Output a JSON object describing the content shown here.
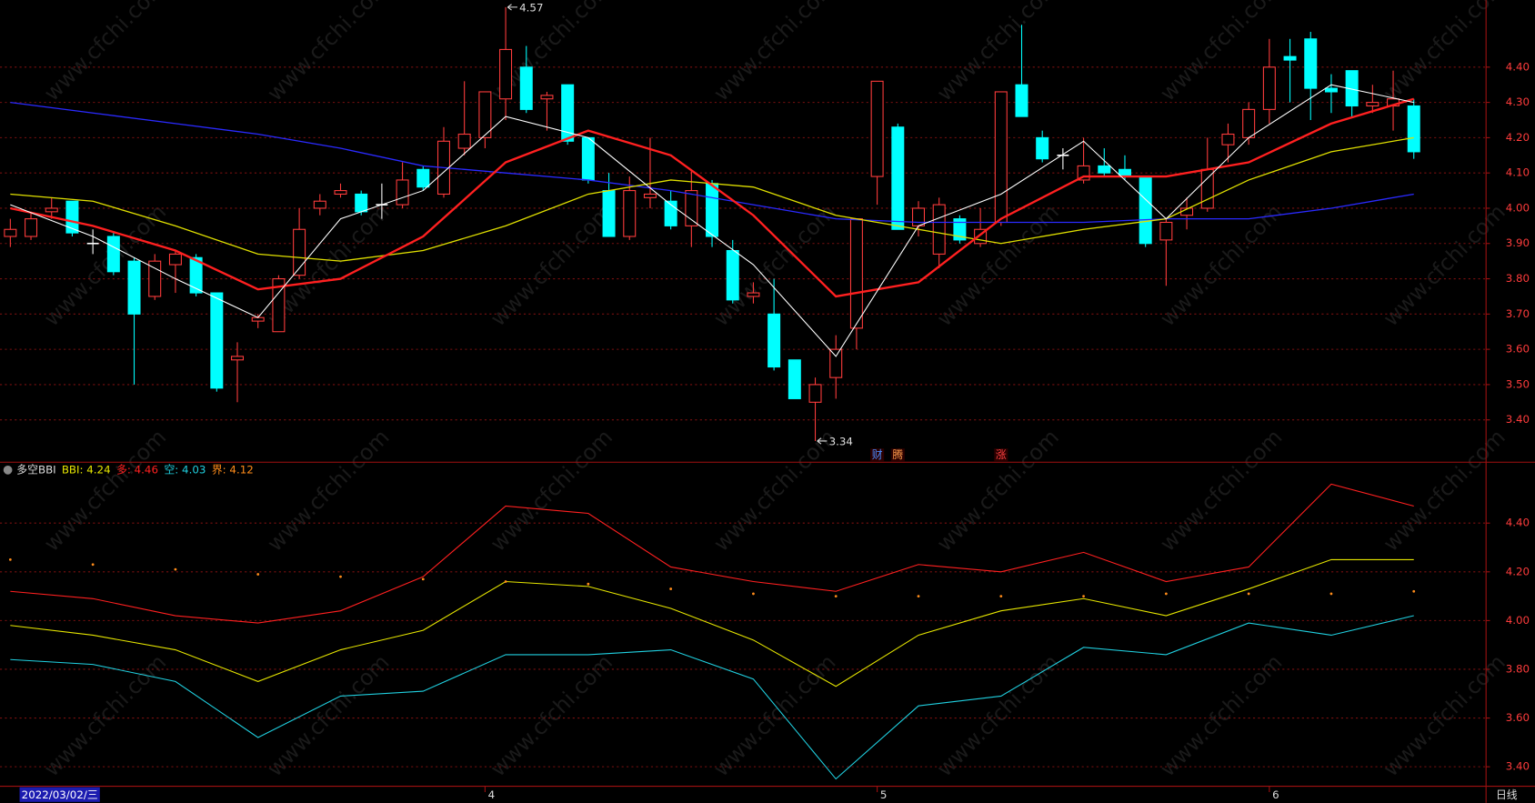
{
  "chart_data": [
    {
      "type": "candlestick",
      "up_color": "#ff3c3c",
      "down_color": "#00ffff",
      "flat_color": "#ffffff",
      "open": [
        3.92,
        3.92,
        3.99,
        4.02,
        3.9,
        3.92,
        3.85,
        3.75,
        3.84,
        3.86,
        3.76,
        3.57,
        3.68,
        3.65,
        3.81,
        4.0,
        4.04,
        4.04,
        4.01,
        4.01,
        4.11,
        4.04,
        4.17,
        4.2,
        4.31,
        4.4,
        4.31,
        4.35,
        4.2,
        4.05,
        3.92,
        4.03,
        4.02,
        3.95,
        4.07,
        3.88,
        3.75,
        3.7,
        3.57,
        3.45,
        3.52,
        3.66,
        4.09,
        4.23,
        3.95,
        3.87,
        3.97,
        3.9,
        3.96,
        4.35,
        4.2,
        4.15,
        4.08,
        4.12,
        4.11,
        4.09,
        3.91,
        3.98,
        4.0,
        4.18,
        4.2,
        4.28,
        4.43,
        4.48,
        4.34,
        4.39,
        4.29,
        4.29,
        4.29
      ],
      "high": [
        3.97,
        3.99,
        4.03,
        4.02,
        3.94,
        3.93,
        3.86,
        3.87,
        3.88,
        3.87,
        3.76,
        3.62,
        3.7,
        3.81,
        4.0,
        4.04,
        4.07,
        4.05,
        4.07,
        4.13,
        4.12,
        4.23,
        4.36,
        4.33,
        4.57,
        4.46,
        4.33,
        4.35,
        4.2,
        4.1,
        4.09,
        4.2,
        4.05,
        4.11,
        4.08,
        3.91,
        3.79,
        3.8,
        3.57,
        3.52,
        3.64,
        3.97,
        4.36,
        4.24,
        4.02,
        4.03,
        3.98,
        4.0,
        4.33,
        4.52,
        4.22,
        4.17,
        4.2,
        4.17,
        4.15,
        4.09,
        3.97,
        4.03,
        4.2,
        4.24,
        4.3,
        4.48,
        4.48,
        4.5,
        4.38,
        4.39,
        4.35,
        4.39,
        4.31
      ],
      "low": [
        3.89,
        3.91,
        3.97,
        3.92,
        3.87,
        3.81,
        3.5,
        3.74,
        3.76,
        3.75,
        3.48,
        3.45,
        3.66,
        3.65,
        3.8,
        3.98,
        4.03,
        3.98,
        3.97,
        4.0,
        4.05,
        4.03,
        4.15,
        4.17,
        4.25,
        4.27,
        4.22,
        4.18,
        4.07,
        3.92,
        3.91,
        4.0,
        3.94,
        3.89,
        3.89,
        3.73,
        3.73,
        3.54,
        3.46,
        3.34,
        3.46,
        3.6,
        4.01,
        3.94,
        3.92,
        3.83,
        3.9,
        3.89,
        3.95,
        4.26,
        4.13,
        4.11,
        4.07,
        4.09,
        4.08,
        3.89,
        3.78,
        3.94,
        3.99,
        4.13,
        4.18,
        4.24,
        4.3,
        4.25,
        4.27,
        4.26,
        4.27,
        4.22,
        4.14
      ],
      "close": [
        3.94,
        3.97,
        4.0,
        3.93,
        3.9,
        3.82,
        3.7,
        3.85,
        3.87,
        3.76,
        3.49,
        3.58,
        3.69,
        3.8,
        3.94,
        4.02,
        4.05,
        3.99,
        4.01,
        4.08,
        4.06,
        4.19,
        4.21,
        4.33,
        4.45,
        4.28,
        4.32,
        4.19,
        4.08,
        3.92,
        4.05,
        4.04,
        3.95,
        4.05,
        3.92,
        3.74,
        3.76,
        3.55,
        3.46,
        3.5,
        3.6,
        3.97,
        4.36,
        3.94,
        4.0,
        4.01,
        3.91,
        3.94,
        4.33,
        4.26,
        4.14,
        4.15,
        4.12,
        4.1,
        4.09,
        3.9,
        3.96,
        4.0,
        4.11,
        4.21,
        4.28,
        4.4,
        4.42,
        4.34,
        4.33,
        4.29,
        4.3,
        4.31,
        4.16
      ],
      "xlim": [
        -0.5,
        71.5
      ],
      "ylim": [
        3.28,
        4.59
      ],
      "yticks": [
        {
          "value": 4.4,
          "label": "4.40"
        },
        {
          "value": 4.3,
          "label": "4.30"
        },
        {
          "value": 4.2,
          "label": "4.20"
        },
        {
          "value": 4.1,
          "label": "4.10"
        },
        {
          "value": 4.0,
          "label": "4.00"
        },
        {
          "value": 3.9,
          "label": "3.90"
        },
        {
          "value": 3.8,
          "label": "3.80"
        },
        {
          "value": 3.7,
          "label": "3.70"
        },
        {
          "value": 3.6,
          "label": "3.60"
        },
        {
          "value": 3.5,
          "label": "3.50"
        },
        {
          "value": 3.4,
          "label": "3.40"
        }
      ],
      "grid": true,
      "lines": [
        {
          "color": "#2a2aff",
          "width": 1.2,
          "x": [
            0,
            4,
            8,
            12,
            16,
            20,
            24,
            28,
            32,
            36,
            40,
            44,
            48,
            52,
            56,
            60,
            64,
            68
          ],
          "values": [
            4.3,
            4.27,
            4.24,
            4.21,
            4.17,
            4.12,
            4.1,
            4.08,
            4.05,
            4.01,
            3.97,
            3.96,
            3.96,
            3.96,
            3.97,
            3.97,
            4.0,
            4.04
          ]
        },
        {
          "color": "#e0e000",
          "width": 1.2,
          "x": [
            0,
            4,
            8,
            12,
            16,
            20,
            24,
            28,
            32,
            36,
            40,
            44,
            48,
            52,
            56,
            60,
            64,
            68
          ],
          "values": [
            4.04,
            4.02,
            3.95,
            3.87,
            3.85,
            3.88,
            3.95,
            4.04,
            4.08,
            4.06,
            3.98,
            3.94,
            3.9,
            3.94,
            3.97,
            4.08,
            4.16,
            4.2
          ]
        },
        {
          "color": "#ff2020",
          "width": 2.2,
          "x": [
            0,
            4,
            8,
            12,
            16,
            20,
            24,
            28,
            32,
            36,
            40,
            44,
            48,
            52,
            56,
            60,
            64,
            68
          ],
          "values": [
            4.0,
            3.95,
            3.88,
            3.77,
            3.8,
            3.92,
            4.13,
            4.22,
            4.15,
            3.98,
            3.75,
            3.79,
            3.97,
            4.09,
            4.09,
            4.13,
            4.24,
            4.31
          ]
        },
        {
          "color": "#ffffff",
          "width": 1,
          "x": [
            0,
            4,
            8,
            12,
            16,
            20,
            24,
            28,
            32,
            36,
            40,
            44,
            48,
            52,
            56,
            60,
            64,
            68
          ],
          "values": [
            4.01,
            3.92,
            3.8,
            3.69,
            3.97,
            4.05,
            4.26,
            4.2,
            4.01,
            3.84,
            3.58,
            3.95,
            4.04,
            4.19,
            3.97,
            4.2,
            4.35,
            4.3
          ]
        }
      ],
      "max_mark_index": 24,
      "min_mark_index": 39,
      "event_tags": [
        {
          "x": 42,
          "text": "财",
          "color": "#4a8cff"
        },
        {
          "x": 43,
          "text": "腾",
          "color": "#ff9a4a"
        },
        {
          "x": 48,
          "text": "涨",
          "color": "#ff4040"
        }
      ],
      "watermark": "www.cfchi.com"
    },
    {
      "type": "line",
      "title": "多空BBI",
      "xlim": [
        -0.5,
        71.5
      ],
      "ylim": [
        3.32,
        4.65
      ],
      "yticks": [
        {
          "value": 4.4,
          "label": "4.40"
        },
        {
          "value": 4.2,
          "label": "4.20"
        },
        {
          "value": 4.0,
          "label": "4.00"
        },
        {
          "value": 3.8,
          "label": "3.80"
        },
        {
          "value": 3.6,
          "label": "3.60"
        },
        {
          "value": 3.4,
          "label": "3.40"
        }
      ],
      "grid": true,
      "series": [
        {
          "legend": "BBI: 4.24",
          "color": "#e6e600",
          "style": "line",
          "x": [
            0,
            4,
            8,
            12,
            16,
            20,
            24,
            28,
            32,
            36,
            40,
            44,
            48,
            52,
            56,
            60,
            64,
            68
          ],
          "values": [
            3.98,
            3.94,
            3.88,
            3.75,
            3.88,
            3.96,
            4.16,
            4.14,
            4.05,
            3.92,
            3.73,
            3.94,
            4.04,
            4.09,
            4.02,
            4.13,
            4.25,
            4.25
          ]
        },
        {
          "legend": "多: 4.46",
          "color": "#ff2020",
          "style": "line",
          "x": [
            0,
            4,
            8,
            12,
            16,
            20,
            24,
            28,
            32,
            36,
            40,
            44,
            48,
            52,
            56,
            60,
            64,
            68
          ],
          "values": [
            4.12,
            4.09,
            4.02,
            3.99,
            4.04,
            4.18,
            4.47,
            4.44,
            4.22,
            4.16,
            4.12,
            4.23,
            4.2,
            4.28,
            4.16,
            4.22,
            4.56,
            4.47
          ]
        },
        {
          "legend": "空: 4.03",
          "color": "#20d0e0",
          "style": "line",
          "x": [
            0,
            4,
            8,
            12,
            16,
            20,
            24,
            28,
            32,
            36,
            40,
            44,
            48,
            52,
            56,
            60,
            64,
            68
          ],
          "values": [
            3.84,
            3.82,
            3.75,
            3.52,
            3.69,
            3.71,
            3.86,
            3.86,
            3.88,
            3.76,
            3.35,
            3.65,
            3.69,
            3.89,
            3.86,
            3.99,
            3.94,
            4.02
          ]
        },
        {
          "legend": "界: 4.12",
          "color": "#ff8c1a",
          "style": "dots",
          "x": [
            0,
            4,
            8,
            12,
            16,
            20,
            24,
            28,
            32,
            36,
            40,
            44,
            48,
            52,
            56,
            60,
            64,
            68
          ],
          "values": [
            4.25,
            4.23,
            4.21,
            4.19,
            4.18,
            4.17,
            4.16,
            4.15,
            4.13,
            4.11,
            4.1,
            4.1,
            4.1,
            4.1,
            4.11,
            4.11,
            4.11,
            4.12
          ]
        }
      ],
      "month_labels": [
        "4",
        "5",
        "6"
      ],
      "month_index": [
        23,
        42,
        61
      ],
      "cursor_label": "2022/03/02/三",
      "period_label": "日线"
    }
  ]
}
